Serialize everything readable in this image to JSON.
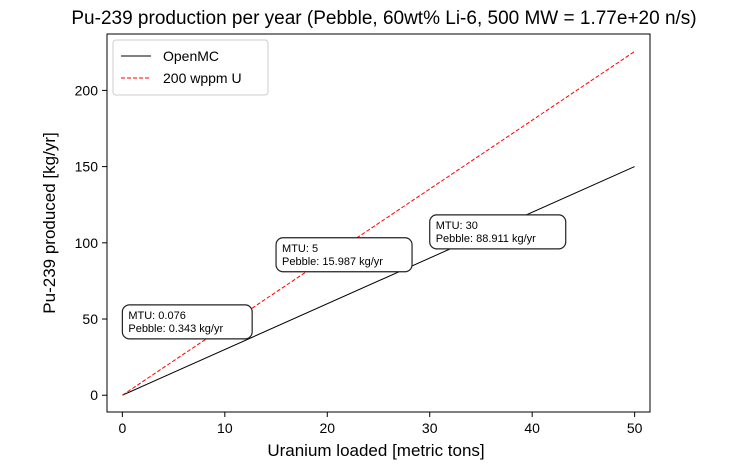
{
  "chart_data": {
    "type": "line",
    "title": "Pu-239 production per year (Pebble, 60wt% Li-6, 500 MW = 1.77e+20 n/s)",
    "xlabel": "Uranium loaded [metric tons]",
    "ylabel": "Pu-239 produced [kg/yr]",
    "xlim": [
      -1.5,
      51.5
    ],
    "ylim": [
      -11,
      237
    ],
    "xticks": [
      0,
      10,
      20,
      30,
      40,
      50
    ],
    "yticks": [
      0,
      50,
      100,
      150,
      200
    ],
    "grid": false,
    "legend_position": "top-left",
    "series": [
      {
        "name": "OpenMC",
        "color": "#000000",
        "dash": "solid",
        "x": [
          0,
          50
        ],
        "y": [
          0,
          150
        ]
      },
      {
        "name": "200 wppm U",
        "color": "#ff0000",
        "dash": "dashed",
        "x": [
          0,
          50
        ],
        "y": [
          0,
          225.5
        ]
      }
    ],
    "annotations": [
      {
        "line1": "MTU: 0.076",
        "line2": "Pebble: 0.343 kg/yr",
        "x": 0,
        "y": 37
      },
      {
        "line1": "MTU: 5",
        "line2": "Pebble: 15.987 kg/yr",
        "x": 15,
        "y": 81
      },
      {
        "line1": "MTU: 30",
        "line2": "Pebble: 88.911 kg/yr",
        "x": 30,
        "y": 96
      }
    ]
  }
}
